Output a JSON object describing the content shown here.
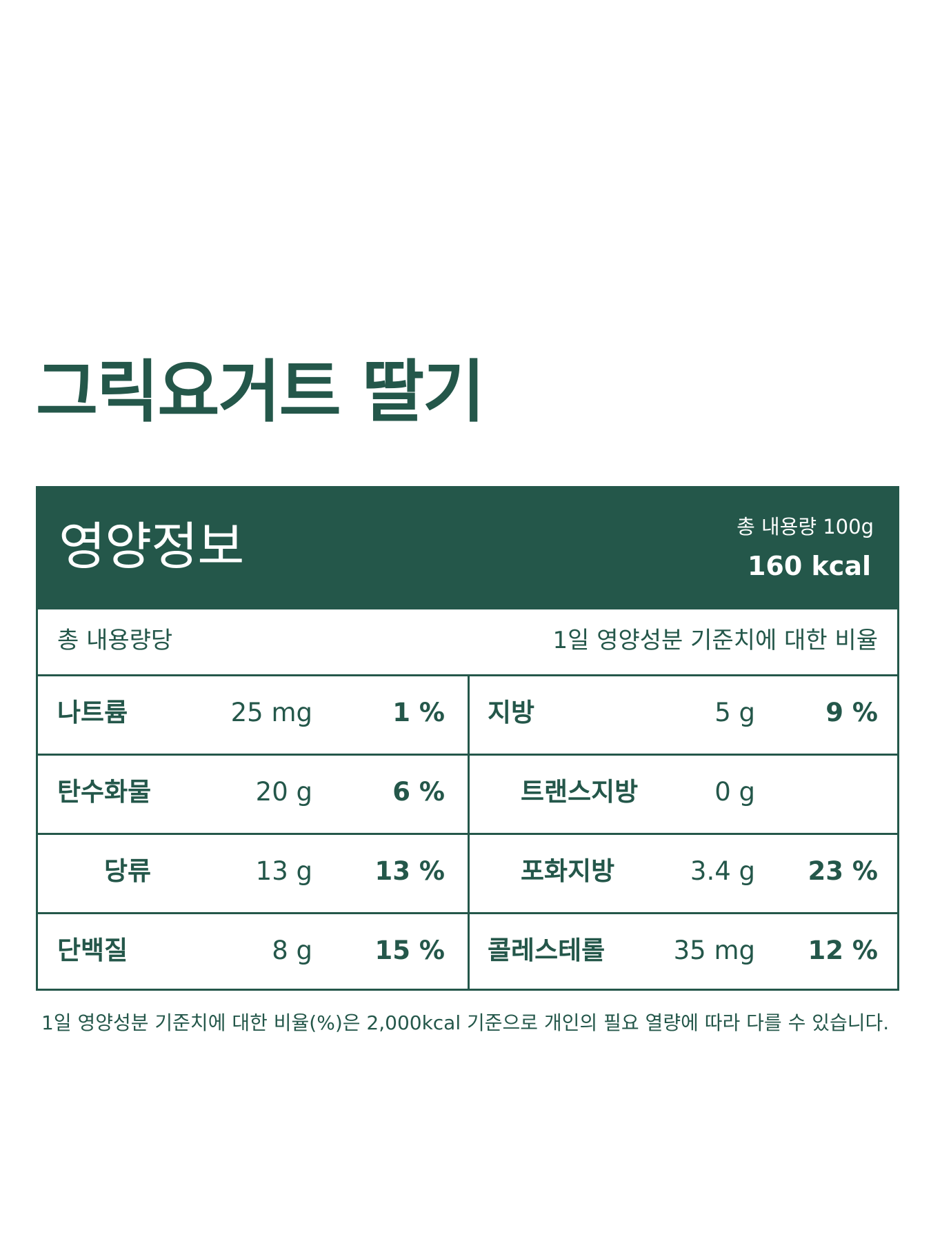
{
  "title": "그릭요거트 딸기",
  "panel": {
    "heading": "영양정보",
    "total_size": "총 내용량 100g",
    "calories": "160 kcal",
    "per_label": "총 내용량당",
    "ratio_label": "1일 영양성분 기준치에 대한 비율"
  },
  "rows": [
    {
      "left": {
        "name": "나트륨",
        "amount": "25 mg",
        "percent": "1 %"
      },
      "right": {
        "name": "지방",
        "amount": "5 g",
        "percent": "9 %"
      }
    },
    {
      "left": {
        "name": "탄수화물",
        "amount": "20 g",
        "percent": "6 %"
      },
      "right": {
        "name": "트랜스지방",
        "amount": "0 g",
        "percent": ""
      }
    },
    {
      "left": {
        "name": "당류",
        "amount": "13 g",
        "percent": "13 %"
      },
      "right": {
        "name": "포화지방",
        "amount": "3.4 g",
        "percent": "23 %"
      }
    },
    {
      "left": {
        "name": "단백질",
        "amount": "8 g",
        "percent": "15 %"
      },
      "right": {
        "name": "콜레스테롤",
        "amount": "35 mg",
        "percent": "12 %"
      }
    }
  ],
  "footnote": "1일 영양성분 기준치에 대한 비율(%)은 2,000kcal 기준으로 개인의 필요 열량에 따라 다를 수 있습니다.",
  "colors": {
    "brand": "#24574a",
    "background": "#ffffff"
  }
}
